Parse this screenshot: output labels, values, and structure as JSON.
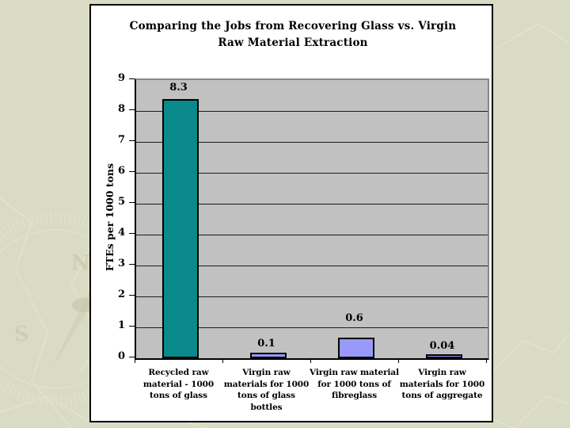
{
  "slide": {
    "background_color": "#dadbc4",
    "watermark": "compass-map"
  },
  "chart_box": {
    "background_color": "#ffffff",
    "border_color": "#000000"
  },
  "chart_data": {
    "type": "bar",
    "title": "Comparing the Jobs from Recovering Glass vs. Virgin Raw Material Extraction",
    "title_lines": [
      "Comparing the Jobs from Recovering Glass vs. Virgin",
      "Raw Material Extraction"
    ],
    "categories": [
      "Recycled raw material - 1000 tons of glass",
      "Virgin raw materials for 1000 tons of glass bottles",
      "Virgin raw material for 1000 tons of fibreglass",
      "Virgin raw materials for 1000 tons of aggregate"
    ],
    "values": [
      8.3,
      0.1,
      0.6,
      0.04
    ],
    "data_labels": [
      "8.3",
      "0.1",
      "0.6",
      "0.04"
    ],
    "xlabel": "",
    "ylabel": "FTEs per 1000 tons",
    "ylim": [
      0,
      9
    ],
    "yticks": [
      "0",
      "1",
      "2",
      "3",
      "4",
      "5",
      "6",
      "7",
      "8",
      "9"
    ],
    "grid": true,
    "legend": "none",
    "plot_background": "#c1c1c1",
    "gridline_color": "#1c1c1c",
    "bar_colors": [
      "#0a8a8a",
      "#9999fa",
      "#9999fa",
      "#9999fa"
    ],
    "bar_border_color": "#000000"
  }
}
